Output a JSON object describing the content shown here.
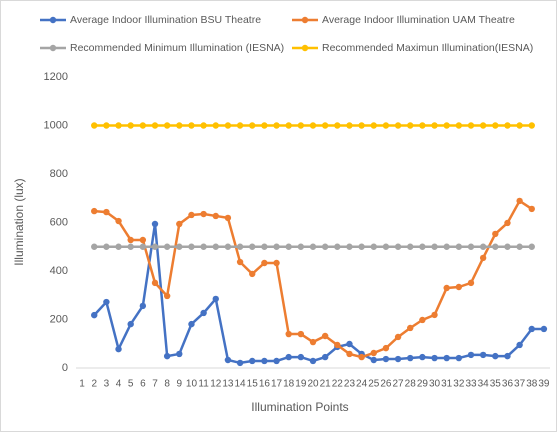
{
  "chart_data": {
    "type": "line",
    "x_label": "Illumination Points",
    "y_label": "Illumination (lux)",
    "categories": [
      "1",
      "2",
      "3",
      "4",
      "5",
      "6",
      "7",
      "8",
      "9",
      "10",
      "11",
      "12",
      "13",
      "14",
      "15",
      "16",
      "17",
      "18",
      "19",
      "20",
      "21",
      "22",
      "23",
      "24",
      "25",
      "26",
      "27",
      "28",
      "29",
      "30",
      "31",
      "32",
      "33",
      "34",
      "35",
      "36",
      "37",
      "38",
      "39"
    ],
    "ylim": [
      0,
      1200
    ],
    "yticks": [
      0,
      200,
      400,
      600,
      800,
      1000,
      1200
    ],
    "grid": false,
    "series": [
      {
        "name": "Average Indoor Illumination BSU Theatre",
        "color": "#4472c4",
        "values": [
          null,
          218,
          272,
          78,
          181,
          256,
          594,
          49,
          58,
          181,
          227,
          285,
          33,
          21,
          29,
          29,
          29,
          45,
          45,
          29,
          45,
          87,
          99,
          58,
          33,
          37,
          37,
          41,
          45,
          41,
          41,
          41,
          54,
          54,
          49,
          49,
          95,
          161,
          161
        ]
      },
      {
        "name": "Average Indoor Illumination UAM Theatre",
        "color": "#ed7d31",
        "values": [
          null,
          647,
          643,
          606,
          528,
          528,
          351,
          297,
          594,
          631,
          635,
          627,
          619,
          437,
          388,
          433,
          433,
          140,
          140,
          107,
          132,
          95,
          58,
          45,
          62,
          82,
          128,
          165,
          198,
          219,
          330,
          334,
          351,
          454,
          553,
          598,
          689,
          656,
          null
        ]
      },
      {
        "name": "Recommended Minimum Illumination (IESNA)",
        "color": "#a5a5a5",
        "values": [
          null,
          500,
          500,
          500,
          500,
          500,
          500,
          500,
          500,
          500,
          500,
          500,
          500,
          500,
          500,
          500,
          500,
          500,
          500,
          500,
          500,
          500,
          500,
          500,
          500,
          500,
          500,
          500,
          500,
          500,
          500,
          500,
          500,
          500,
          500,
          500,
          500,
          500,
          null
        ]
      },
      {
        "name": "Recommended Maximun Illumination(IESNA)",
        "color": "#ffc000",
        "values": [
          null,
          1000,
          1000,
          1000,
          1000,
          1000,
          1000,
          1000,
          1000,
          1000,
          1000,
          1000,
          1000,
          1000,
          1000,
          1000,
          1000,
          1000,
          1000,
          1000,
          1000,
          1000,
          1000,
          1000,
          1000,
          1000,
          1000,
          1000,
          1000,
          1000,
          1000,
          1000,
          1000,
          1000,
          1000,
          1000,
          1000,
          1000,
          null
        ]
      }
    ]
  }
}
